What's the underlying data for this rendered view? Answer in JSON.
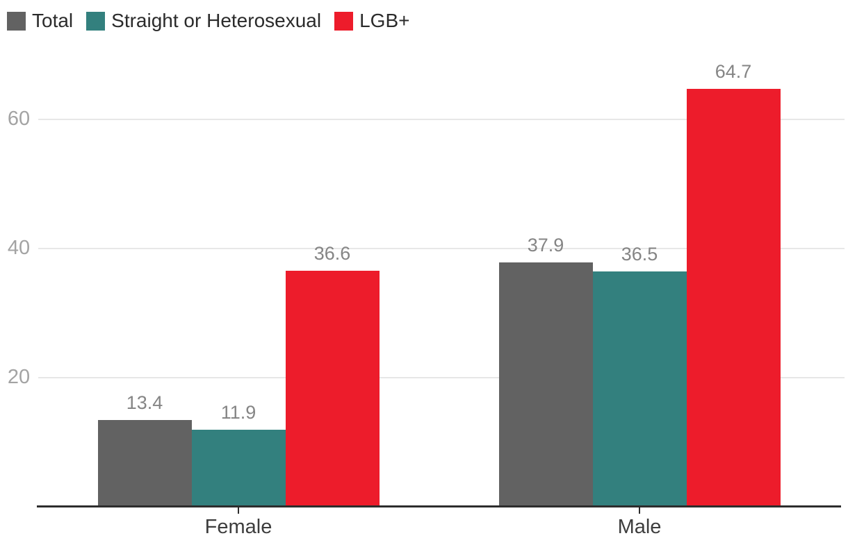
{
  "chart_data": {
    "type": "bar",
    "categories": [
      "Female",
      "Male"
    ],
    "series": [
      {
        "name": "Total",
        "color": "#626262",
        "values": [
          13.4,
          37.9
        ],
        "labels": [
          "13.4",
          "37.9"
        ]
      },
      {
        "name": "Straight or Heterosexual",
        "color": "#33807e",
        "values": [
          11.9,
          36.5
        ],
        "labels": [
          "11.9",
          "36.5"
        ]
      },
      {
        "name": "LGB+",
        "color": "#ed1c2b",
        "values": [
          36.6,
          64.7
        ],
        "labels": [
          "36.6",
          "64.7"
        ]
      }
    ],
    "title": "",
    "xlabel": "",
    "ylabel": "",
    "ylim": [
      0,
      70
    ],
    "yticks": [
      20,
      40,
      60
    ],
    "grid": true,
    "legend_position": "top-left"
  },
  "colors": {
    "background": "#ffffff",
    "gridline": "#e7e7e7",
    "axis_line": "#2d2d2d",
    "ytick_label": "#a3a3a3",
    "value_label": "#858585",
    "category_label": "#3d3d3d",
    "legend_text": "#2b2b2b"
  }
}
